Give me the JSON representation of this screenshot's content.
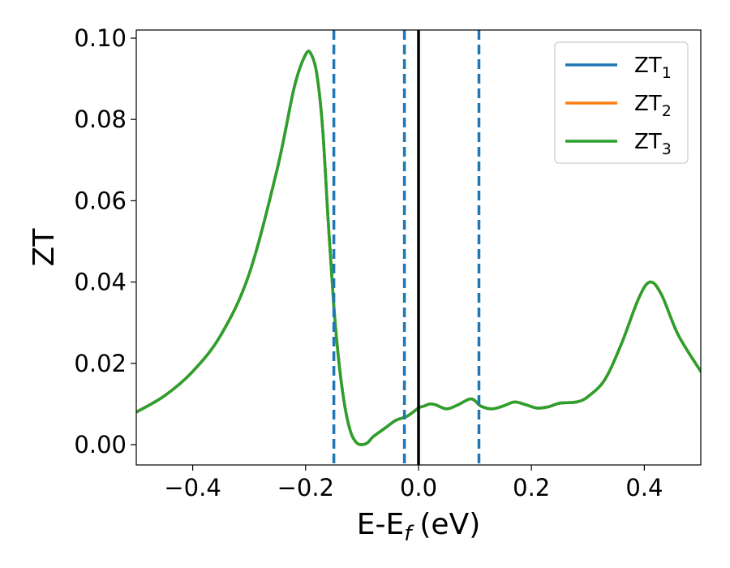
{
  "chart_data": {
    "type": "line",
    "title": "",
    "xlabel": "E-E",
    "xlabel_sub": "f",
    "xlabel_unit": "(eV)",
    "ylabel": "ZT",
    "xlim": [
      -0.5,
      0.5
    ],
    "ylim": [
      -0.005,
      0.102
    ],
    "xticks": [
      -0.4,
      -0.2,
      0.0,
      0.2,
      0.4
    ],
    "xtick_labels": [
      "−0.4",
      "−0.2",
      "0.0",
      "0.2",
      "0.4"
    ],
    "yticks": [
      0.0,
      0.02,
      0.04,
      0.06,
      0.08,
      0.1
    ],
    "ytick_labels": [
      "0.00",
      "0.02",
      "0.04",
      "0.06",
      "0.08",
      "0.10"
    ],
    "grid": false,
    "legend_position": "top-right",
    "x": [
      -0.5,
      -0.45,
      -0.4,
      -0.35,
      -0.3,
      -0.25,
      -0.22,
      -0.2,
      -0.19,
      -0.18,
      -0.17,
      -0.16,
      -0.15,
      -0.14,
      -0.13,
      -0.12,
      -0.11,
      -0.1,
      -0.09,
      -0.08,
      -0.06,
      -0.04,
      -0.02,
      0.0,
      0.01,
      0.02,
      0.03,
      0.05,
      0.07,
      0.09,
      0.1,
      0.11,
      0.13,
      0.15,
      0.17,
      0.19,
      0.21,
      0.23,
      0.25,
      0.28,
      0.3,
      0.33,
      0.36,
      0.39,
      0.41,
      0.43,
      0.46,
      0.5
    ],
    "series": [
      {
        "name": "ZT",
        "sub": "1",
        "color": "#1f77b4",
        "values": [
          0.008,
          0.012,
          0.018,
          0.027,
          0.042,
          0.068,
          0.088,
          0.096,
          0.096,
          0.091,
          0.078,
          0.055,
          0.034,
          0.019,
          0.009,
          0.003,
          0.0005,
          0.0,
          0.0005,
          0.002,
          0.004,
          0.006,
          0.007,
          0.009,
          0.0095,
          0.01,
          0.0098,
          0.0088,
          0.0098,
          0.0112,
          0.0108,
          0.0095,
          0.0088,
          0.0095,
          0.0105,
          0.0098,
          0.009,
          0.0093,
          0.0102,
          0.0105,
          0.0118,
          0.016,
          0.025,
          0.036,
          0.04,
          0.037,
          0.027,
          0.018
        ]
      },
      {
        "name": "ZT",
        "sub": "2",
        "color": "#ff7f0e",
        "values": [
          0.008,
          0.012,
          0.018,
          0.027,
          0.042,
          0.068,
          0.088,
          0.096,
          0.096,
          0.091,
          0.078,
          0.055,
          0.034,
          0.019,
          0.009,
          0.003,
          0.0005,
          0.0,
          0.0005,
          0.002,
          0.004,
          0.006,
          0.007,
          0.009,
          0.0095,
          0.01,
          0.0098,
          0.0088,
          0.0098,
          0.0112,
          0.0108,
          0.0095,
          0.0088,
          0.0095,
          0.0105,
          0.0098,
          0.009,
          0.0093,
          0.0102,
          0.0105,
          0.0118,
          0.016,
          0.025,
          0.036,
          0.04,
          0.037,
          0.027,
          0.018
        ]
      },
      {
        "name": "ZT",
        "sub": "3",
        "color": "#2ca02c",
        "values": [
          0.008,
          0.012,
          0.018,
          0.027,
          0.042,
          0.068,
          0.088,
          0.096,
          0.096,
          0.091,
          0.078,
          0.055,
          0.034,
          0.019,
          0.009,
          0.003,
          0.0005,
          0.0,
          0.0005,
          0.002,
          0.004,
          0.006,
          0.007,
          0.009,
          0.0095,
          0.01,
          0.0098,
          0.0088,
          0.0098,
          0.0112,
          0.0108,
          0.0095,
          0.0088,
          0.0095,
          0.0105,
          0.0098,
          0.009,
          0.0093,
          0.0102,
          0.0105,
          0.0118,
          0.016,
          0.025,
          0.036,
          0.04,
          0.037,
          0.027,
          0.018
        ]
      }
    ],
    "vlines": [
      {
        "x": -0.15,
        "style": "dashed",
        "color": "#1f77b4"
      },
      {
        "x": -0.025,
        "style": "dashed",
        "color": "#1f77b4"
      },
      {
        "x": 0.0,
        "style": "solid",
        "color": "#000000"
      },
      {
        "x": 0.107,
        "style": "dashed",
        "color": "#1f77b4"
      }
    ]
  }
}
